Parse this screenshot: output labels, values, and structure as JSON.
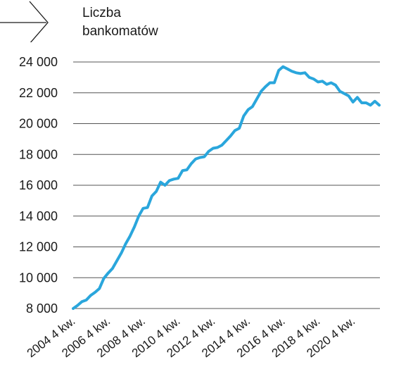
{
  "chart_data": {
    "type": "line",
    "title": "",
    "ylabel_lines": [
      "Liczba",
      "bankomatów"
    ],
    "ylim": [
      8000,
      24000
    ],
    "yticks": [
      8000,
      10000,
      12000,
      14000,
      16000,
      18000,
      20000,
      22000,
      24000
    ],
    "ytick_labels": [
      "8 000",
      "10 000",
      "12 000",
      "14 000",
      "16 000",
      "18 000",
      "20 000",
      "22 000",
      "24 000"
    ],
    "xtick_labels": [
      "2004 4 kw.",
      "2006 4 kw.",
      "2008 4 kw.",
      "2010 4 kw.",
      "2012 4 kw.",
      "2014 4 kw.",
      "2016 4 kw.",
      "2018 4 kw.",
      "2020 4 kw."
    ],
    "grid": true,
    "line_color": "#2aa6dc",
    "grid_color": "#555555",
    "series": [
      {
        "values": [
          8000,
          8200,
          8450,
          8550,
          8850,
          9050,
          9300,
          9950,
          10300,
          10600,
          11100,
          11600,
          12200,
          12700,
          13300,
          14000,
          14500,
          14550,
          15300,
          15600,
          16200,
          16000,
          16300,
          16400,
          16450,
          16950,
          17000,
          17400,
          17700,
          17800,
          17850,
          18200,
          18400,
          18450,
          18600,
          18900,
          19200,
          19550,
          19700,
          20500,
          20900,
          21100,
          21600,
          22100,
          22400,
          22650,
          22650,
          23450,
          23700,
          23550,
          23400,
          23300,
          23250,
          23300,
          23000,
          22900,
          22700,
          22750,
          22550,
          22650,
          22500,
          22100,
          21950,
          21800,
          21400,
          21700,
          21350,
          21350,
          21200,
          21450,
          21200
        ]
      }
    ]
  }
}
